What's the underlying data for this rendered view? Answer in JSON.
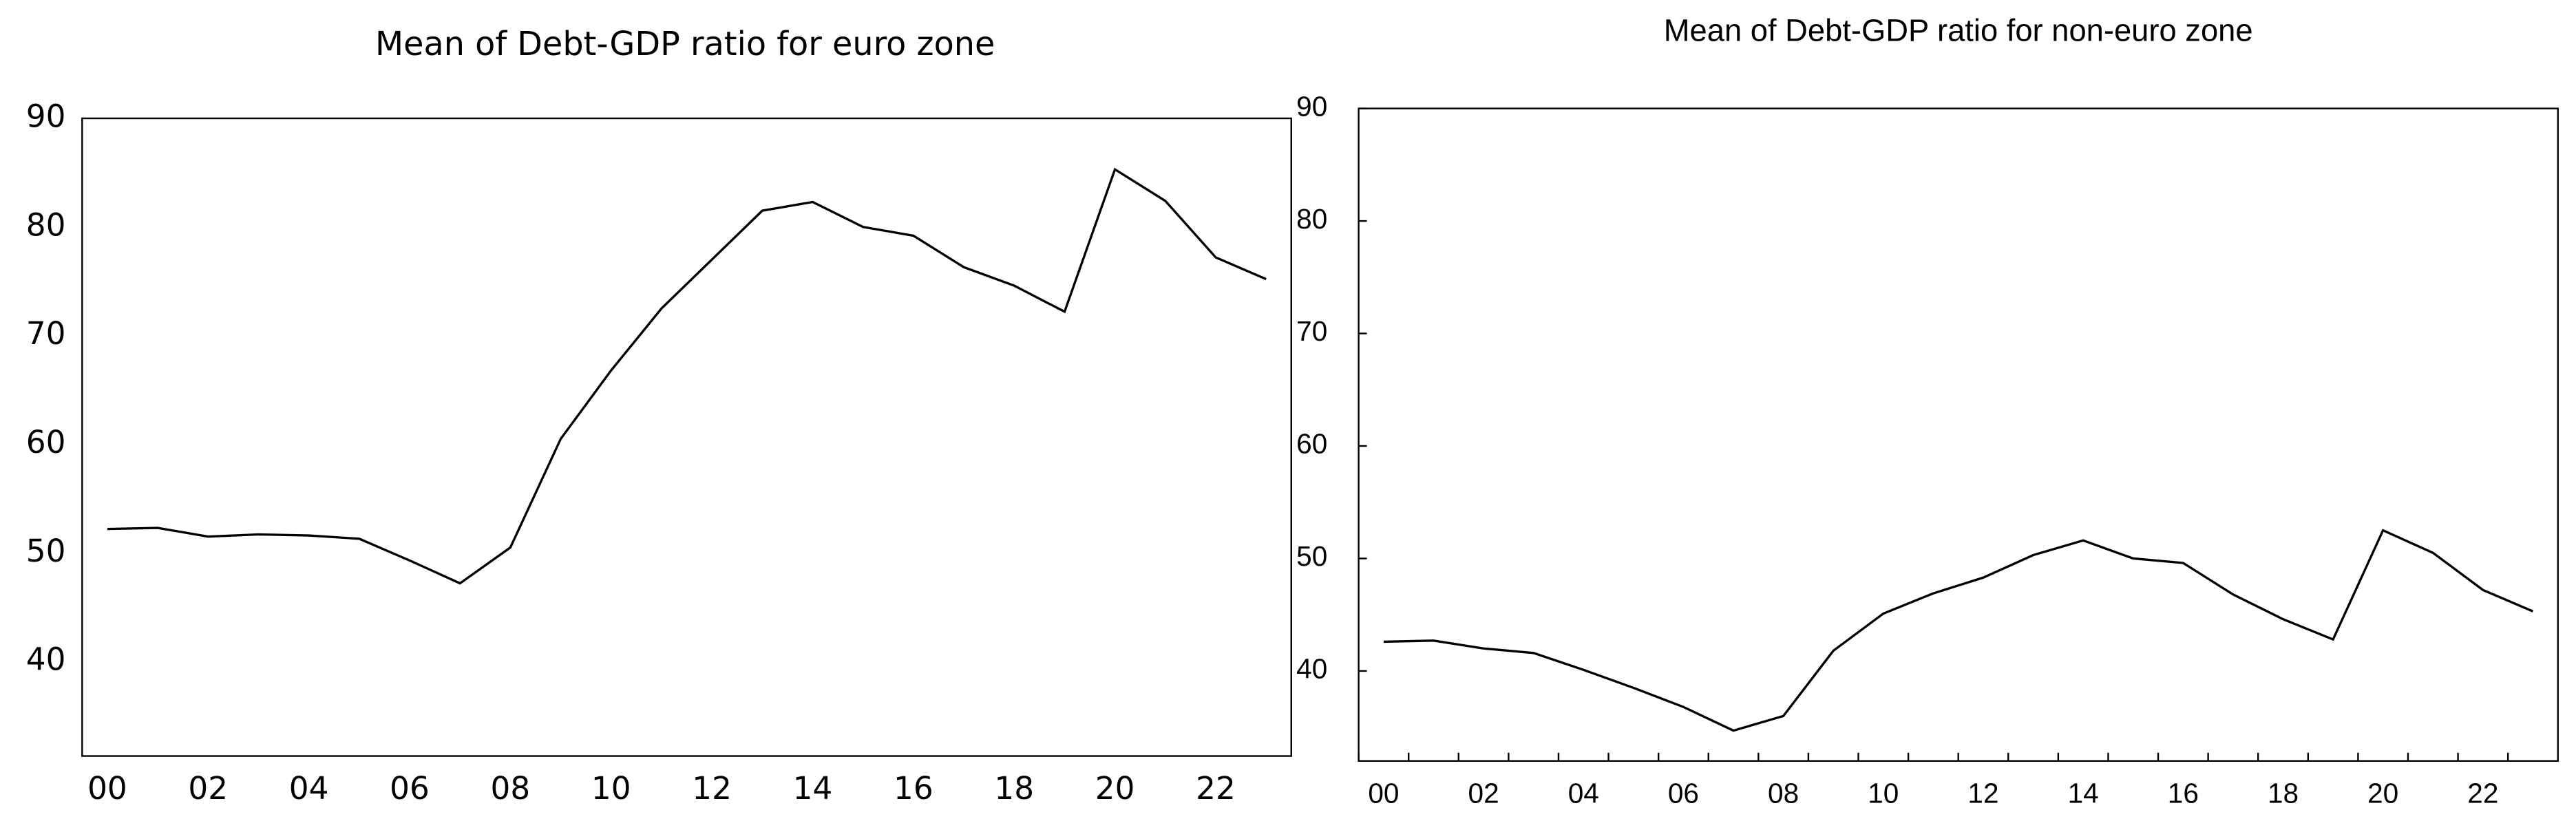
{
  "chart_data": [
    {
      "type": "line",
      "title": "Mean of Debt-GDP ratio for euro zone",
      "categories": [
        "00",
        null,
        "02",
        null,
        "04",
        null,
        "06",
        null,
        "08",
        null,
        "10",
        null,
        "12",
        null,
        "14",
        null,
        "16",
        null,
        "18",
        null,
        "20",
        null,
        "22",
        null
      ],
      "series": [
        {
          "color": "#000000",
          "values": [
            52.2,
            52.3,
            51.5,
            51.7,
            51.6,
            51.3,
            49.3,
            47.2,
            50.5,
            60.5,
            66.8,
            72.5,
            77.0,
            81.5,
            82.3,
            80.0,
            79.2,
            76.3,
            74.6,
            72.2,
            85.3,
            82.4,
            77.2,
            75.2
          ]
        }
      ],
      "ylim": [
        31.3,
        90
      ],
      "yticks": [
        40,
        50,
        60,
        70,
        80,
        90
      ]
    },
    {
      "type": "line",
      "title": "Mean of Debt-GDP ratio for non-euro zone",
      "categories": [
        "00",
        null,
        "02",
        null,
        "04",
        null,
        "06",
        null,
        "08",
        null,
        "10",
        null,
        "12",
        null,
        "14",
        null,
        "16",
        null,
        "18",
        null,
        "20",
        null,
        "22",
        null
      ],
      "series": [
        {
          "color": "#000000",
          "values": [
            42.6,
            42.7,
            42.0,
            41.6,
            40.1,
            38.5,
            36.8,
            34.7,
            36.0,
            41.8,
            45.1,
            46.9,
            48.3,
            50.3,
            51.6,
            50.0,
            49.6,
            46.8,
            44.6,
            42.8,
            52.5,
            50.5,
            47.2,
            45.3
          ]
        }
      ],
      "ylim": [
        32,
        90
      ],
      "yticks": [
        40,
        50,
        60,
        70,
        80,
        90
      ]
    }
  ]
}
